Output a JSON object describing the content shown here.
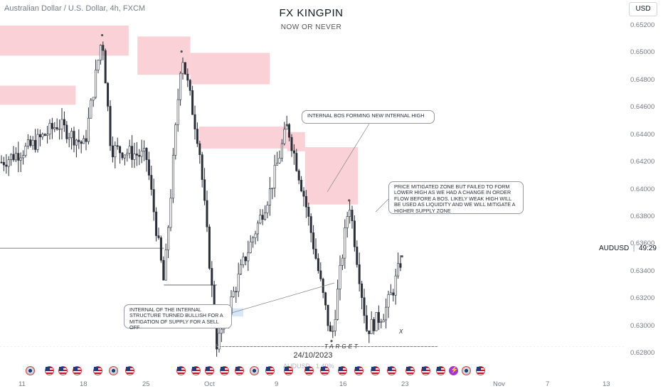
{
  "header": {
    "symbol_info": "Australian Dollar / U.S. Dollar, 4h, FXCM",
    "title": "FX KINGPIN",
    "subtitle": "NOW OR NEVER",
    "currency_button": "USD"
  },
  "price_axis": [
    "0.65200",
    "0.65000",
    "0.64800",
    "0.64600",
    "0.64400",
    "0.64200",
    "0.64000",
    "0.63800",
    "0.63600",
    "0.63400",
    "0.63200",
    "0.63000",
    "0.62800"
  ],
  "time_axis": [
    "11",
    "18",
    "25",
    "Oct",
    "9",
    "16",
    "23",
    "Nov",
    "7",
    "13"
  ],
  "symbol_label": "AUDUSD",
  "countdown": "49:29",
  "crosshair_date": "24/10/2023",
  "sub_label": "AUDUSD · 1.40%",
  "annotations": {
    "internal_bos": "INTERNAL BOS FORMING NEW INTERNAL HIGH",
    "price_mitigated": "PRICE MITIGATED ZONE BUT FAILED TO FORM LOWER HIGH AS WE HAD A CHANGE IN ORDER FLOW BEFORE A BoS. LIKELY WEAK HIGH WILL BE USED AS LIQUIDITY AND WE WILL MITIGATE A HIGHER SUPPLY ZONE",
    "internal_structure": "INTERNAL OF THE INTERNAL STRUCTURE TURNED BULLISH FOR A MITIGATION OF SUPPLY FOR A SELL OFF",
    "target": "TARGET",
    "x": "X"
  },
  "events": [
    "au",
    "us",
    "us",
    "us",
    "us",
    "au",
    "us",
    "us",
    "us",
    "us",
    "us",
    "us",
    "au",
    "us",
    "us",
    "us",
    "us",
    "us",
    "us",
    "us",
    "us",
    "us",
    "us",
    "us",
    "bolt",
    "au",
    "us",
    "us",
    "us"
  ],
  "colors": {
    "zone": "#f9c9cf",
    "zone_blue": "#cfe3fa",
    "candle": "#2a2e39",
    "ema": "#7fb2e5"
  },
  "chart_data": {
    "type": "candlestick",
    "title": "FX KINGPIN",
    "subtitle": "NOW OR NEVER",
    "symbol": "AUDUSD",
    "interval": "4h",
    "source": "FXCM",
    "ylim": [
      0.6275,
      0.6525
    ],
    "y_ticks": [
      0.628,
      0.63,
      0.632,
      0.634,
      0.636,
      0.638,
      0.64,
      0.642,
      0.644,
      0.646,
      0.648,
      0.65,
      0.652
    ],
    "x_ticks": [
      "11",
      "18",
      "25",
      "Oct",
      "9",
      "16",
      "23",
      "Nov",
      "7",
      "13"
    ],
    "zones": [
      {
        "kind": "supply",
        "from_date": "2023-09-05",
        "to_date": "2023-09-23",
        "top": 0.652,
        "bottom": 0.6498
      },
      {
        "kind": "supply",
        "from_date": "2023-09-05",
        "to_date": "2023-09-17",
        "top": 0.6476,
        "bottom": 0.6462
      },
      {
        "kind": "supply",
        "from_date": "2023-09-24",
        "to_date": "2023-09-30",
        "top": 0.6512,
        "bottom": 0.6484
      },
      {
        "kind": "supply",
        "from_date": "2023-09-30",
        "to_date": "2023-10-09",
        "top": 0.65,
        "bottom": 0.6477
      },
      {
        "kind": "supply",
        "from_date": "2023-10-01",
        "to_date": "2023-10-11",
        "top": 0.6446,
        "bottom": 0.643
      },
      {
        "kind": "supply",
        "from_date": "2023-10-11",
        "to_date": "2023-10-13",
        "top": 0.6442,
        "bottom": 0.6428
      },
      {
        "kind": "supply",
        "from_date": "2023-10-13",
        "to_date": "2023-10-19",
        "top": 0.6431,
        "bottom": 0.6389
      },
      {
        "kind": "demand",
        "from_date": "2023-10-03",
        "to_date": "2023-10-06",
        "top": 0.6313,
        "bottom": 0.6307
      }
    ],
    "levels": [
      {
        "label": "TARGET",
        "price": 0.6285,
        "from_date": "2023-10-03",
        "to_date": "2023-10-28"
      },
      {
        "label": "prior low",
        "price": 0.6357,
        "from_date": "2023-09-05",
        "to_date": "2023-09-27"
      },
      {
        "label": "internal low",
        "price": 0.633,
        "from_date": "2023-09-27",
        "to_date": "2023-10-03"
      }
    ],
    "key_points": [
      {
        "date": "2023-09-20",
        "price": 0.6513
      },
      {
        "date": "2023-09-29",
        "price": 0.6501
      },
      {
        "date": "2023-10-03",
        "price": 0.6286
      },
      {
        "date": "2023-10-11",
        "price": 0.6447
      },
      {
        "date": "2023-10-16",
        "price": 0.6289
      },
      {
        "date": "2023-10-18",
        "price": 0.6392
      },
      {
        "date": "2023-10-20",
        "price": 0.6297
      },
      {
        "date": "2023-10-24",
        "price": 0.6351
      }
    ],
    "last_price_label": "AUDUSD",
    "countdown": "49:29"
  }
}
